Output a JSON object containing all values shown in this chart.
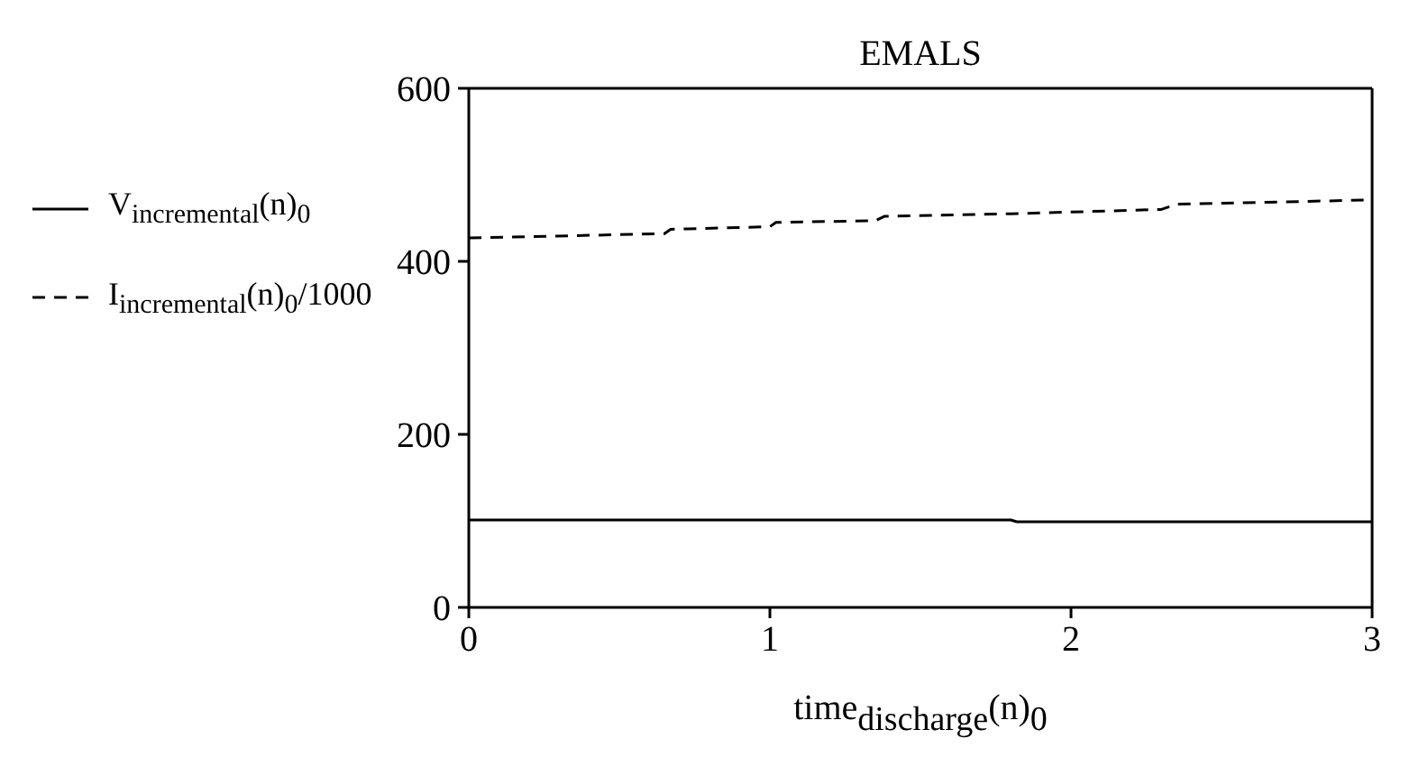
{
  "chart_data": {
    "type": "line",
    "title": "EMALS",
    "xlabel": "time$_{discharge}$(n)$_{0}$",
    "xlim": [
      0,
      3
    ],
    "xticks": [
      0,
      1,
      2,
      3
    ],
    "ylim": [
      0,
      600
    ],
    "yticks": [
      0,
      200,
      400,
      600
    ],
    "legend": "left",
    "marker": "none",
    "series": [
      {
        "name": "V$_{incremental}$(n)$_{0}$",
        "color": "#000000",
        "line_style": "solid",
        "x": [
          0,
          1.8,
          1.82,
          3
        ],
        "values": [
          101,
          101,
          99,
          99
        ]
      },
      {
        "name": "I$_{incremental}$(n)$_{0}$/1000",
        "color": "#000000",
        "line_style": "dashed",
        "x": [
          0,
          0.65,
          0.67,
          1,
          1.02,
          1.35,
          1.38,
          1.8,
          2.3,
          2.35,
          3
        ],
        "values": [
          427,
          432,
          437,
          440,
          445,
          447,
          452,
          455,
          460,
          466,
          471
        ]
      }
    ]
  }
}
